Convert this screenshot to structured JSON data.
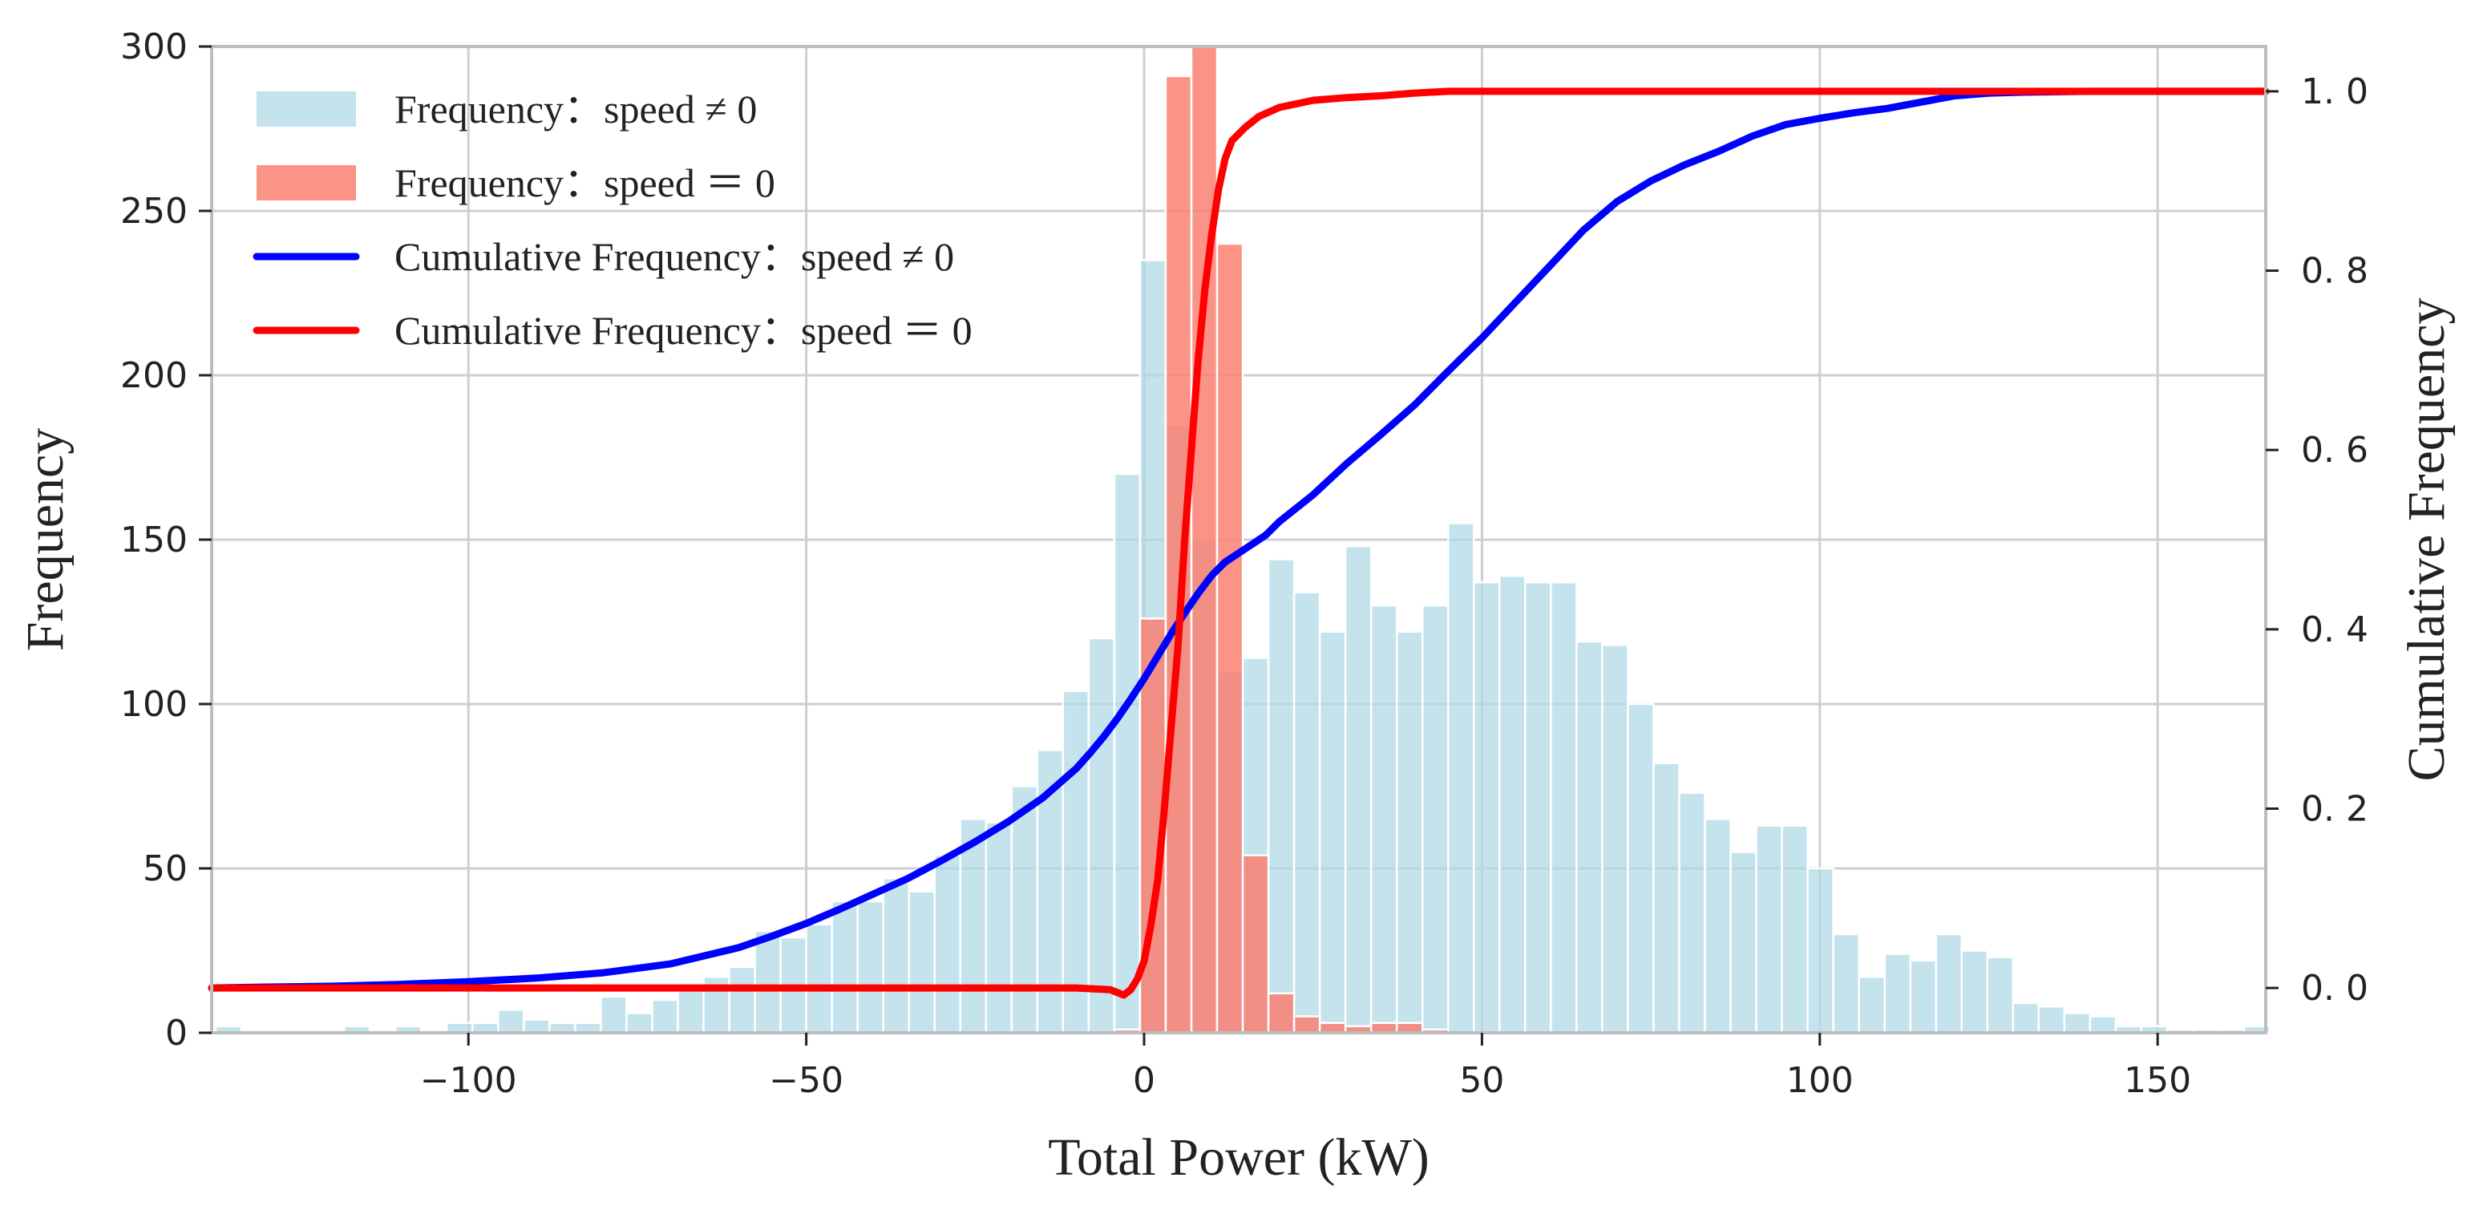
{
  "chart_data": {
    "type": "bar",
    "xlabel": "Total Power (kW)",
    "ylabel": "Frequency",
    "ylabel_right": "Cumulative Frequency",
    "xlim": [
      -138,
      166
    ],
    "ylim": [
      0,
      300
    ],
    "ylim_right": [
      -0.05,
      1.05
    ],
    "grid": true,
    "legend_position": "top-left",
    "x_ticks": [
      {
        "value": -100,
        "label": "−100"
      },
      {
        "value": -50,
        "label": "−50"
      },
      {
        "value": 0,
        "label": "0"
      },
      {
        "value": 50,
        "label": "50"
      },
      {
        "value": 100,
        "label": "100"
      },
      {
        "value": 150,
        "label": "150"
      }
    ],
    "y_ticks": [
      {
        "value": 0,
        "label": "0"
      },
      {
        "value": 50,
        "label": "50"
      },
      {
        "value": 100,
        "label": "100"
      },
      {
        "value": 150,
        "label": "150"
      },
      {
        "value": 200,
        "label": "200"
      },
      {
        "value": 250,
        "label": "250"
      },
      {
        "value": 300,
        "label": "300"
      }
    ],
    "y2_ticks": [
      {
        "value": 0.0,
        "label": "0. 0"
      },
      {
        "value": 0.2,
        "label": "0. 2"
      },
      {
        "value": 0.4,
        "label": "0. 4"
      },
      {
        "value": 0.6,
        "label": "0. 6"
      },
      {
        "value": 0.8,
        "label": "0. 8"
      },
      {
        "value": 1.0,
        "label": "1. 0"
      }
    ],
    "legend": [
      {
        "label": "Frequency：speed ≠ 0",
        "kind": "patch",
        "color": "#add8e6"
      },
      {
        "label": "Frequency：speed ＝ 0",
        "kind": "patch",
        "color": "#fa8072"
      },
      {
        "label": "Cumulative Frequency：speed ≠ 0",
        "kind": "line",
        "color": "#0000ff"
      },
      {
        "label": "Cumulative Frequency：speed ＝ 0",
        "kind": "line",
        "color": "#ff0000"
      }
    ],
    "series": [
      {
        "name": "Frequency：speed ≠ 0",
        "type": "bar",
        "color": "#add8e6",
        "bin_width": 3.8,
        "bin_starts": [
          -137.4,
          -133.6,
          -129.8,
          -126.0,
          -122.2,
          -118.4,
          -114.6,
          -110.8,
          -107.0,
          -103.2,
          -99.4,
          -95.6,
          -91.8,
          -88.0,
          -84.2,
          -80.4,
          -76.6,
          -72.8,
          -69.0,
          -65.2,
          -61.4,
          -57.6,
          -53.8,
          -50.0,
          -46.2,
          -42.4,
          -38.6,
          -34.8,
          -31.0,
          -27.2,
          -23.4,
          -19.6,
          -15.8,
          -12.0,
          -8.2,
          -4.4,
          -0.6,
          3.2,
          7.0,
          10.8,
          14.6,
          18.4,
          22.2,
          26.0,
          29.8,
          33.6,
          37.4,
          41.2,
          45.0,
          48.8,
          52.6,
          56.4,
          60.2,
          64.0,
          67.8,
          71.6,
          75.4,
          79.2,
          83.0,
          86.8,
          90.6,
          94.4,
          98.2,
          102.0,
          105.8,
          109.6,
          113.4,
          117.2,
          121.0,
          124.8,
          128.6,
          132.4,
          136.2,
          140.0,
          143.8,
          147.6,
          151.4,
          155.2,
          159.0,
          162.8
        ],
        "values": [
          2,
          0,
          0,
          0,
          0,
          2,
          0,
          2,
          0,
          3,
          3,
          7,
          4,
          3,
          3,
          11,
          6,
          10,
          14,
          17,
          20,
          31,
          29,
          33,
          40,
          40,
          47,
          43,
          54,
          65,
          64,
          75,
          86,
          104,
          120,
          170,
          235,
          185,
          150,
          110,
          114,
          144,
          134,
          122,
          148,
          130,
          122,
          130,
          155,
          137,
          139,
          137,
          137,
          119,
          118,
          100,
          82,
          73,
          65,
          55,
          63,
          63,
          50,
          30,
          17,
          24,
          22,
          30,
          25,
          23,
          9,
          8,
          6,
          5,
          2,
          2,
          1,
          1,
          1,
          2
        ]
      },
      {
        "name": "Frequency：speed ＝ 0",
        "type": "bar",
        "color": "#fa8072",
        "bin_width": 3.8,
        "bin_starts": [
          -4.4,
          -0.6,
          3.2,
          7.0,
          10.8,
          14.6,
          18.4,
          22.2,
          26.0,
          29.8,
          33.6,
          37.4,
          41.2
        ],
        "values": [
          1,
          126,
          291,
          300,
          240,
          54,
          12,
          5,
          3,
          2,
          3,
          3,
          1
        ]
      },
      {
        "name": "Cumulative Frequency：speed ≠ 0",
        "type": "line",
        "color": "#0000ff",
        "x": [
          -138,
          -130,
          -120,
          -110,
          -100,
          -90,
          -80,
          -70,
          -60,
          -55,
          -50,
          -45,
          -40,
          -35,
          -30,
          -25,
          -20,
          -15,
          -10,
          -8,
          -6,
          -4,
          -2,
          0,
          2,
          4,
          6,
          8,
          10,
          12,
          14,
          16,
          18,
          20,
          25,
          30,
          35,
          40,
          45,
          50,
          55,
          60,
          65,
          70,
          75,
          80,
          85,
          90,
          95,
          100,
          105,
          110,
          115,
          120,
          125,
          130,
          140,
          150,
          166
        ],
        "y": [
          0.0,
          0.001,
          0.002,
          0.004,
          0.007,
          0.011,
          0.017,
          0.027,
          0.045,
          0.058,
          0.072,
          0.088,
          0.105,
          0.122,
          0.142,
          0.163,
          0.186,
          0.212,
          0.245,
          0.262,
          0.28,
          0.3,
          0.322,
          0.345,
          0.37,
          0.395,
          0.418,
          0.44,
          0.46,
          0.475,
          0.485,
          0.495,
          0.505,
          0.52,
          0.55,
          0.585,
          0.617,
          0.65,
          0.688,
          0.725,
          0.765,
          0.805,
          0.845,
          0.877,
          0.9,
          0.918,
          0.933,
          0.95,
          0.963,
          0.97,
          0.976,
          0.981,
          0.988,
          0.995,
          0.998,
          0.999,
          1.0,
          1.0,
          1.0
        ]
      },
      {
        "name": "Cumulative Frequency：speed ＝ 0",
        "type": "line",
        "color": "#ff0000",
        "x": [
          -138,
          -100,
          -50,
          -10,
          -5,
          -3,
          -2,
          -1,
          0,
          1,
          2,
          3,
          4,
          5,
          6,
          7,
          8,
          9,
          10,
          11,
          12,
          13,
          15,
          17,
          20,
          25,
          30,
          35,
          40,
          45,
          60,
          100,
          166
        ],
        "y": [
          0.0,
          0.0,
          0.0,
          0.0,
          -0.002,
          -0.008,
          -0.002,
          0.01,
          0.03,
          0.07,
          0.12,
          0.2,
          0.29,
          0.38,
          0.5,
          0.6,
          0.7,
          0.78,
          0.84,
          0.89,
          0.925,
          0.945,
          0.96,
          0.972,
          0.982,
          0.99,
          0.993,
          0.995,
          0.998,
          1.0,
          1.0,
          1.0,
          1.0
        ]
      }
    ]
  }
}
